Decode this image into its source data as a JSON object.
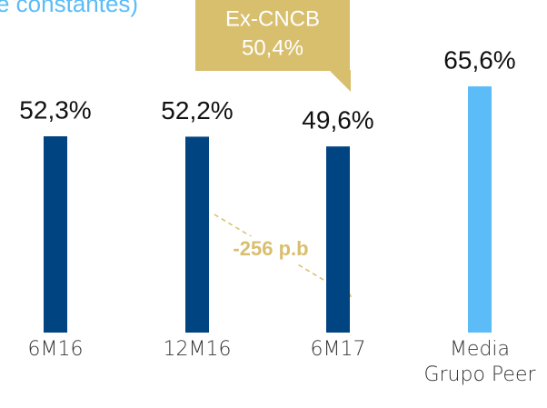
{
  "chart_data": {
    "type": "bar",
    "subtitle": "e constantes)",
    "categories": [
      "6M16",
      "12M16",
      "6M17",
      "Media\nGrupo Peer"
    ],
    "values": [
      52.3,
      52.2,
      49.6,
      65.6
    ],
    "value_labels": [
      "52,3%",
      "52,2%",
      "49,6%",
      "65,6%"
    ],
    "colors": [
      "#004481",
      "#004481",
      "#004481",
      "#5bbcf7"
    ],
    "callout": {
      "title": "Ex-CNCB",
      "text": "50,4%",
      "color": "#d8bf6e"
    },
    "annotation": {
      "text": "-256 p.b",
      "color": "#d8bf6e"
    }
  }
}
